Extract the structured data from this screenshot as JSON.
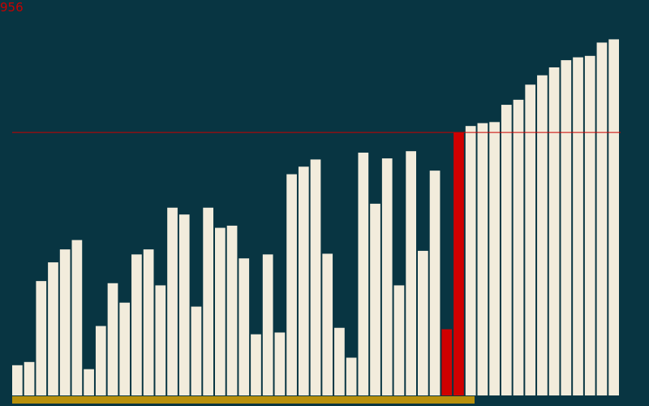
{
  "counter": "956",
  "colors": {
    "background": "#083542",
    "bar": "#f2ecdc",
    "highlight": "#d00000",
    "threshold_line": "#c80000",
    "progress": "#b8900c"
  },
  "chart_data": {
    "type": "bar",
    "title": "",
    "xlabel": "",
    "ylabel": "",
    "ylim": [
      0,
      1000
    ],
    "grid": false,
    "legend": "none",
    "values": [
      84,
      93,
      318,
      370,
      406,
      432,
      73,
      193,
      312,
      258,
      392,
      406,
      306,
      522,
      503,
      247,
      522,
      466,
      472,
      381,
      170,
      392,
      175,
      615,
      636,
      656,
      394,
      188,
      105,
      675,
      533,
      659,
      306,
      679,
      402,
      625,
      184,
      731,
      749,
      757,
      760,
      808,
      822,
      864,
      890,
      912,
      932,
      940,
      944,
      981,
      990
    ],
    "highlighted_indices": [
      36,
      37
    ],
    "threshold": 731,
    "progress_fraction": 0.76
  }
}
